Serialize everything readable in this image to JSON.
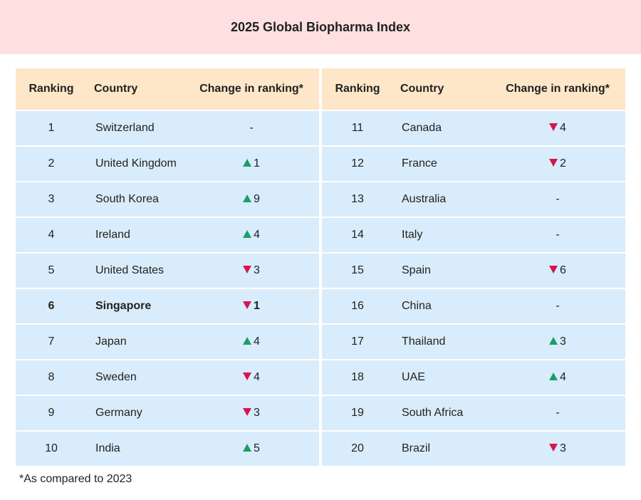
{
  "chart_data": {
    "type": "table",
    "title": "2025 Global Biopharma Index",
    "columns": [
      "Ranking",
      "Country",
      "Change in ranking*"
    ],
    "rows": [
      {
        "rank": "1",
        "country": "Switzerland",
        "direction": "none",
        "change": "-"
      },
      {
        "rank": "2",
        "country": "United Kingdom",
        "direction": "up",
        "change": "1"
      },
      {
        "rank": "3",
        "country": "South Korea",
        "direction": "up",
        "change": "9"
      },
      {
        "rank": "4",
        "country": "Ireland",
        "direction": "up",
        "change": "4"
      },
      {
        "rank": "5",
        "country": "United States",
        "direction": "down",
        "change": "3"
      },
      {
        "rank": "6",
        "country": "Singapore",
        "direction": "down",
        "change": "1",
        "highlight": true
      },
      {
        "rank": "7",
        "country": "Japan",
        "direction": "up",
        "change": "4"
      },
      {
        "rank": "8",
        "country": "Sweden",
        "direction": "down",
        "change": "4"
      },
      {
        "rank": "9",
        "country": "Germany",
        "direction": "down",
        "change": "3"
      },
      {
        "rank": "10",
        "country": "India",
        "direction": "up",
        "change": "5"
      },
      {
        "rank": "11",
        "country": "Canada",
        "direction": "down",
        "change": "4"
      },
      {
        "rank": "12",
        "country": "France",
        "direction": "down",
        "change": "2"
      },
      {
        "rank": "13",
        "country": "Australia",
        "direction": "none",
        "change": "-"
      },
      {
        "rank": "14",
        "country": "Italy",
        "direction": "none",
        "change": "-"
      },
      {
        "rank": "15",
        "country": "Spain",
        "direction": "down",
        "change": "6"
      },
      {
        "rank": "16",
        "country": "China",
        "direction": "none",
        "change": "-"
      },
      {
        "rank": "17",
        "country": "Thailand",
        "direction": "up",
        "change": "3"
      },
      {
        "rank": "18",
        "country": "UAE",
        "direction": "up",
        "change": "4"
      },
      {
        "rank": "19",
        "country": "South Africa",
        "direction": "none",
        "change": "-"
      },
      {
        "rank": "20",
        "country": "Brazil",
        "direction": "down",
        "change": "3"
      }
    ],
    "footnote": "*As compared to 2023"
  },
  "colors": {
    "title_band": "#fde0df",
    "header": "#fde7c8",
    "row": "#d9ecfb",
    "up": "#1a9e6a",
    "down": "#d8144f"
  },
  "icons": {
    "up": "triangle-up-icon",
    "down": "triangle-down-icon"
  }
}
